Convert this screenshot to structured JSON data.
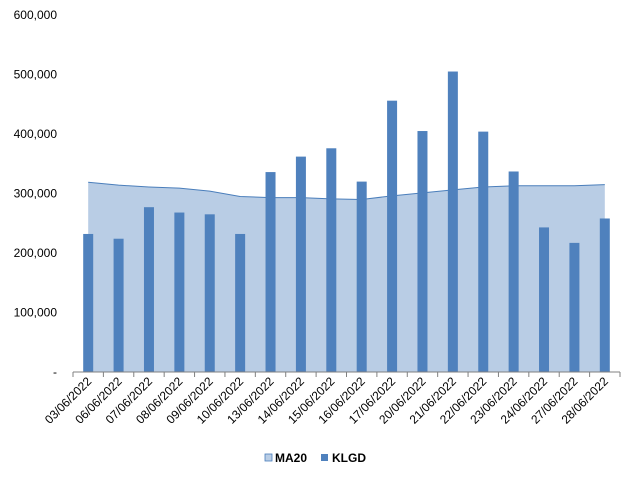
{
  "chart_data": {
    "type": "bar",
    "categories": [
      "03/06/2022",
      "06/06/2022",
      "07/06/2022",
      "08/06/2022",
      "09/06/2022",
      "10/06/2022",
      "13/06/2022",
      "14/06/2022",
      "15/06/2022",
      "16/06/2022",
      "17/06/2022",
      "20/06/2022",
      "21/06/2022",
      "22/06/2022",
      "23/06/2022",
      "24/06/2022",
      "27/06/2022",
      "28/06/2022"
    ],
    "series": [
      {
        "name": "MA20",
        "render": "area",
        "color": "#b9cde5",
        "stroke": "#4a7ebb",
        "values": [
          319000,
          314000,
          311000,
          309000,
          304000,
          295000,
          293000,
          293000,
          291000,
          290000,
          296000,
          301000,
          306000,
          311000,
          313000,
          313000,
          313000,
          315000
        ]
      },
      {
        "name": "KLGD",
        "render": "bar",
        "color": "#4f81bd",
        "values": [
          232000,
          224000,
          277000,
          268000,
          265000,
          232000,
          336000,
          362000,
          376000,
          320000,
          456000,
          405000,
          505000,
          404000,
          337000,
          243000,
          217000,
          258000
        ]
      }
    ],
    "y_ticks": [
      "-",
      "100,000",
      "200,000",
      "300,000",
      "400,000",
      "500,000",
      "600,000"
    ],
    "ylim": [
      0,
      600000
    ],
    "title": "",
    "xlabel": "",
    "ylabel": "",
    "legend": {
      "position": "bottom",
      "items": [
        "MA20",
        "KLGD"
      ]
    },
    "grid": false
  }
}
